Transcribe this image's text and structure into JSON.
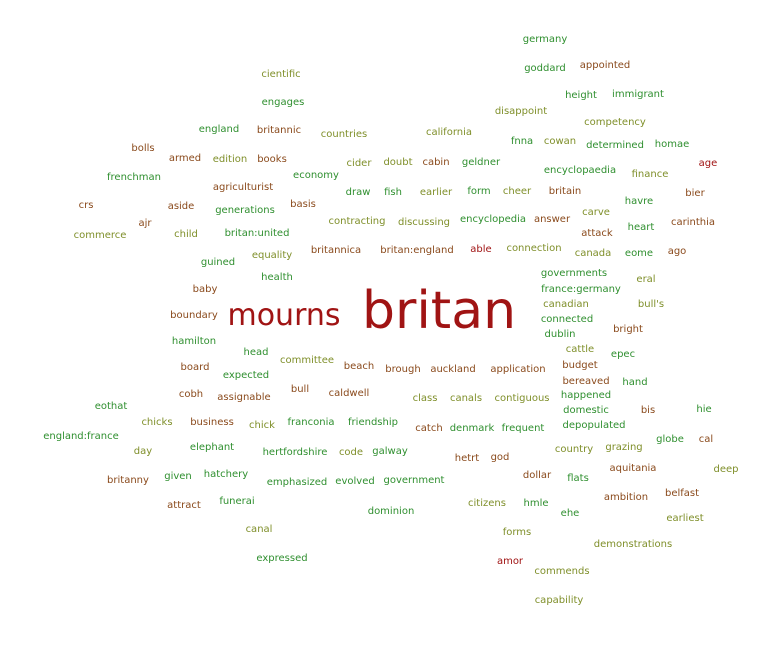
{
  "colors": {
    "green": "#2f8f2f",
    "olive": "#7f8f2a",
    "brown": "#8a4a1c",
    "red": "#a01414"
  },
  "words": {
    "britan": "britan",
    "mourns": "mourns",
    "germany": "germany",
    "goddard": "goddard",
    "appointed": "appointed",
    "height": "height",
    "immigrant": "immigrant",
    "disappoint": "disappoint",
    "competency": "competency",
    "cientific": "cientific",
    "engages": "engages",
    "england": "england",
    "britannic": "britannic",
    "countries": "countries",
    "california": "california",
    "fnna": "fnna",
    "cowan": "cowan",
    "determined": "determined",
    "homae": "homae",
    "bolls": "bolls",
    "armed": "armed",
    "edition": "edition",
    "books": "books",
    "cider": "cider",
    "doubt": "doubt",
    "cabin": "cabin",
    "geldner": "geldner",
    "age": "age",
    "encyclopaedia": "encyclopaedia",
    "finance": "finance",
    "frenchman": "frenchman",
    "economy": "economy",
    "agriculturist": "agriculturist",
    "draw": "draw",
    "fish": "fish",
    "earlier": "earlier",
    "form": "form",
    "cheer": "cheer",
    "britain": "britain",
    "bier": "bier",
    "havre": "havre",
    "crs": "crs",
    "aside": "aside",
    "generations": "generations",
    "basis": "basis",
    "carve": "carve",
    "ajr": "ajr",
    "contracting": "contracting",
    "discussing": "discussing",
    "encyclopedia": "encyclopedia",
    "answer": "answer",
    "heart": "heart",
    "carinthia": "carinthia",
    "commerce": "commerce",
    "child": "child",
    "britan_united": "britan:united",
    "attack": "attack",
    "equality": "equality",
    "britannica": "britannica",
    "britan_england": "britan:england",
    "able": "able",
    "connection": "connection",
    "canada": "canada",
    "eome": "eome",
    "ago": "ago",
    "guined": "guined",
    "health": "health",
    "governments": "governments",
    "eral": "eral",
    "baby": "baby",
    "france_germany": "france:germany",
    "canadian": "canadian",
    "bulls": "bull's",
    "boundary": "boundary",
    "connected": "connected",
    "dublin": "dublin",
    "bright": "bright",
    "hamilton": "hamilton",
    "head": "head",
    "committee": "committee",
    "cattle": "cattle",
    "epec": "epec",
    "board": "board",
    "beach": "beach",
    "brough": "brough",
    "auckland": "auckland",
    "application": "application",
    "budget": "budget",
    "expected": "expected",
    "bereaved": "bereaved",
    "hand": "hand",
    "bull": "bull",
    "cobh": "cobh",
    "assignable": "assignable",
    "caldwell": "caldwell",
    "class": "class",
    "canals": "canals",
    "contiguous": "contiguous",
    "happened": "happened",
    "eothat": "eothat",
    "domestic": "domestic",
    "bis": "bis",
    "hie": "hie",
    "chicks": "chicks",
    "business": "business",
    "chick": "chick",
    "franconia": "franconia",
    "friendship": "friendship",
    "catch": "catch",
    "denmark": "denmark",
    "frequent": "frequent",
    "depopulated": "depopulated",
    "england_france": "england:france",
    "day": "day",
    "elephant": "elephant",
    "hertfordshire": "hertfordshire",
    "code": "code",
    "galway": "galway",
    "country": "country",
    "grazing": "grazing",
    "globe": "globe",
    "cal": "cal",
    "hetrt": "hetrt",
    "god": "god",
    "aquitania": "aquitania",
    "deep": "deep",
    "britanny": "britanny",
    "given": "given",
    "hatchery": "hatchery",
    "emphasized": "emphasized",
    "evolved": "evolved",
    "government": "government",
    "dollar": "dollar",
    "flats": "flats",
    "belfast": "belfast",
    "attract": "attract",
    "funerai": "funerai",
    "citizens": "citizens",
    "hmle": "hmle",
    "ambition": "ambition",
    "dominion": "dominion",
    "ehe": "ehe",
    "earliest": "earliest",
    "canal": "canal",
    "forms": "forms",
    "demonstrations": "demonstrations",
    "expressed": "expressed",
    "amor": "amor",
    "commends": "commends",
    "capability": "capability"
  }
}
